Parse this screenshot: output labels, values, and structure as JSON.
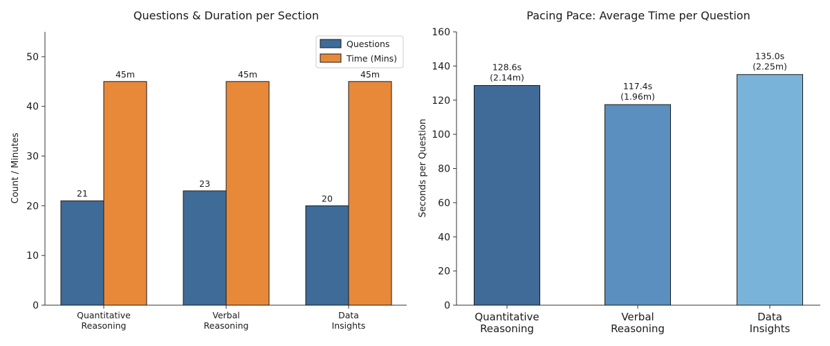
{
  "chart_data": [
    {
      "type": "bar",
      "title": "Questions & Duration per Section",
      "xlabel": "",
      "ylabel": "Count / Minutes",
      "ylim": [
        0,
        55
      ],
      "yticks": [
        0,
        10,
        20,
        30,
        40,
        50
      ],
      "categories": [
        [
          "Quantitative",
          "Reasoning"
        ],
        [
          "Verbal",
          "Reasoning"
        ],
        [
          "Data",
          "Insights"
        ]
      ],
      "series": [
        {
          "name": "Questions",
          "color": "#3f6b98",
          "values": [
            21,
            23,
            20
          ],
          "labels": [
            "21",
            "23",
            "20"
          ]
        },
        {
          "name": "Time (Mins)",
          "color": "#e8893a",
          "values": [
            45,
            45,
            45
          ],
          "labels": [
            "45m",
            "45m",
            "45m"
          ]
        }
      ],
      "legend": "top-right",
      "grid": false
    },
    {
      "type": "bar",
      "title": "Pacing Pace: Average Time per Question",
      "xlabel": "",
      "ylabel": "Seconds per Question",
      "ylim": [
        0,
        160
      ],
      "yticks": [
        0,
        20,
        40,
        60,
        80,
        100,
        120,
        140,
        160
      ],
      "categories": [
        [
          "Quantitative",
          "Reasoning"
        ],
        [
          "Verbal",
          "Reasoning"
        ],
        [
          "Data",
          "Insights"
        ]
      ],
      "values": [
        128.6,
        117.4,
        135.0
      ],
      "colors": [
        "#406b98",
        "#5a8fbf",
        "#7ab3d9"
      ],
      "labels": [
        [
          "128.6s",
          "(2.14m)"
        ],
        [
          "117.4s",
          "(1.96m)"
        ],
        [
          "135.0s",
          "(2.25m)"
        ]
      ],
      "grid": false
    }
  ]
}
